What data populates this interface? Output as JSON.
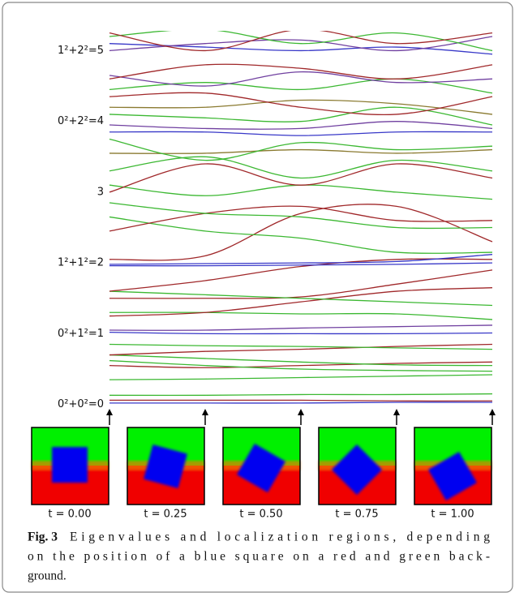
{
  "chart_data": {
    "type": "line",
    "x": [
      0,
      0.25,
      0.5,
      0.75,
      1
    ],
    "xlim": [
      0,
      1
    ],
    "xticks": [
      {
        "value": 0,
        "label": "t = 0.00"
      },
      {
        "value": 0.25,
        "label": "t = 0.25"
      },
      {
        "value": 0.5,
        "label": "t = 0.50"
      },
      {
        "value": 0.75,
        "label": "t = 0.75"
      },
      {
        "value": 1,
        "label": "t = 1.00"
      }
    ],
    "ylim": [
      -0.05,
      5.28
    ],
    "yticks": [
      {
        "value": 0,
        "label": "0²+0²=0"
      },
      {
        "value": 1,
        "label": "0²+1²=1"
      },
      {
        "value": 2,
        "label": "1²+1²=2"
      },
      3,
      {
        "value": 4,
        "label": "0²+2²=4"
      },
      {
        "value": 5,
        "label": "1²+2²=5"
      }
    ],
    "series": [
      {
        "color": "#3838c8",
        "values": [
          0.02,
          0.02,
          0.02,
          0.03,
          0.03
        ]
      },
      {
        "color": "#a0282a",
        "values": [
          0.06,
          0.06,
          0.06,
          0.05,
          0.05
        ]
      },
      {
        "color": "#3cb832",
        "values": [
          0.13,
          0.13,
          0.14,
          0.14,
          0.15
        ]
      },
      {
        "color": "#3cb832",
        "values": [
          0.35,
          0.36,
          0.38,
          0.4,
          0.42
        ]
      },
      {
        "color": "#a0282a",
        "values": [
          0.55,
          0.52,
          0.55,
          0.58,
          0.6
        ]
      },
      {
        "color": "#3cb832",
        "values": [
          0.62,
          0.55,
          0.5,
          0.48,
          0.47
        ]
      },
      {
        "color": "#3cb832",
        "values": [
          0.7,
          0.65,
          0.6,
          0.56,
          0.55
        ]
      },
      {
        "color": "#a0282a",
        "values": [
          0.7,
          0.75,
          0.78,
          0.82,
          0.85
        ]
      },
      {
        "color": "#3cb832",
        "values": [
          0.85,
          0.83,
          0.82,
          0.8,
          0.78
        ]
      },
      {
        "color": "#3838c8",
        "values": [
          1.02,
          1.0,
          1.0,
          1.0,
          1.01
        ]
      },
      {
        "color": "#7040a0",
        "values": [
          1.05,
          1.05,
          1.08,
          1.1,
          1.12
        ]
      },
      {
        "color": "#3cb832",
        "values": [
          1.3,
          1.3,
          1.28,
          1.28,
          1.2
        ]
      },
      {
        "color": "#a0282a",
        "values": [
          1.25,
          1.3,
          1.45,
          1.6,
          1.65
        ]
      },
      {
        "color": "#a0282a",
        "values": [
          1.5,
          1.5,
          1.52,
          1.7,
          1.9
        ]
      },
      {
        "color": "#3cb832",
        "values": [
          1.6,
          1.55,
          1.5,
          1.45,
          1.4
        ]
      },
      {
        "color": "#a0282a",
        "values": [
          1.6,
          1.75,
          1.95,
          2.05,
          2.05
        ]
      },
      {
        "color": "#3838c8",
        "values": [
          1.96,
          1.96,
          1.97,
          1.98,
          2.0
        ]
      },
      {
        "color": "#3838c8",
        "values": [
          1.98,
          1.99,
          2.0,
          2.02,
          2.12
        ]
      },
      {
        "color": "#a0282a",
        "values": [
          2.05,
          2.1,
          2.7,
          2.8,
          2.3
        ]
      },
      {
        "color": "#3cb832",
        "values": [
          2.65,
          2.45,
          2.35,
          2.15,
          2.15
        ]
      },
      {
        "color": "#a0282a",
        "values": [
          2.45,
          2.7,
          2.8,
          2.6,
          2.6
        ]
      },
      {
        "color": "#3cb832",
        "values": [
          2.85,
          2.7,
          2.65,
          2.5,
          2.5
        ]
      },
      {
        "color": "#3cb832",
        "values": [
          3.1,
          2.95,
          3.1,
          3.0,
          2.9
        ]
      },
      {
        "color": "#a0282a",
        "values": [
          3.0,
          3.4,
          3.1,
          3.4,
          3.2
        ]
      },
      {
        "color": "#3cb832",
        "values": [
          3.3,
          3.5,
          3.2,
          3.45,
          3.3
        ]
      },
      {
        "color": "#8a7a30",
        "values": [
          3.55,
          3.55,
          3.6,
          3.55,
          3.6
        ]
      },
      {
        "color": "#3cb832",
        "values": [
          3.75,
          3.45,
          3.7,
          3.6,
          3.65
        ]
      },
      {
        "color": "#3838c8",
        "values": [
          3.85,
          3.85,
          3.8,
          3.85,
          3.85
        ]
      },
      {
        "color": "#7040a0",
        "values": [
          3.95,
          3.9,
          3.9,
          4.0,
          3.9
        ]
      },
      {
        "color": "#3cb832",
        "values": [
          4.1,
          4.05,
          4.0,
          4.2,
          3.95
        ]
      },
      {
        "color": "#8a7a30",
        "values": [
          4.2,
          4.2,
          4.3,
          4.25,
          4.1
        ]
      },
      {
        "color": "#a0282a",
        "values": [
          4.35,
          4.4,
          4.2,
          4.1,
          4.35
        ]
      },
      {
        "color": "#3cb832",
        "values": [
          4.45,
          4.55,
          4.45,
          4.6,
          4.4
        ]
      },
      {
        "color": "#7040a0",
        "values": [
          4.65,
          4.5,
          4.7,
          4.55,
          4.6
        ]
      },
      {
        "color": "#a0282a",
        "values": [
          4.6,
          4.8,
          4.75,
          4.6,
          4.8
        ]
      },
      {
        "color": "#3838c8",
        "values": [
          5.1,
          5.05,
          5.0,
          5.05,
          4.95
        ]
      },
      {
        "color": "#7040a0",
        "values": [
          5.0,
          5.1,
          5.15,
          5.0,
          5.2
        ]
      },
      {
        "color": "#3cb832",
        "values": [
          5.2,
          5.3,
          5.1,
          5.25,
          5.0
        ]
      },
      {
        "color": "#a0282a",
        "values": [
          5.25,
          5.0,
          5.3,
          5.1,
          5.25
        ]
      }
    ]
  },
  "caption": {
    "label": "Fig. 3",
    "lines": [
      "Eigenvalues and localization regions, depending",
      "on the position of a blue square on a red and green back-",
      "ground."
    ]
  }
}
